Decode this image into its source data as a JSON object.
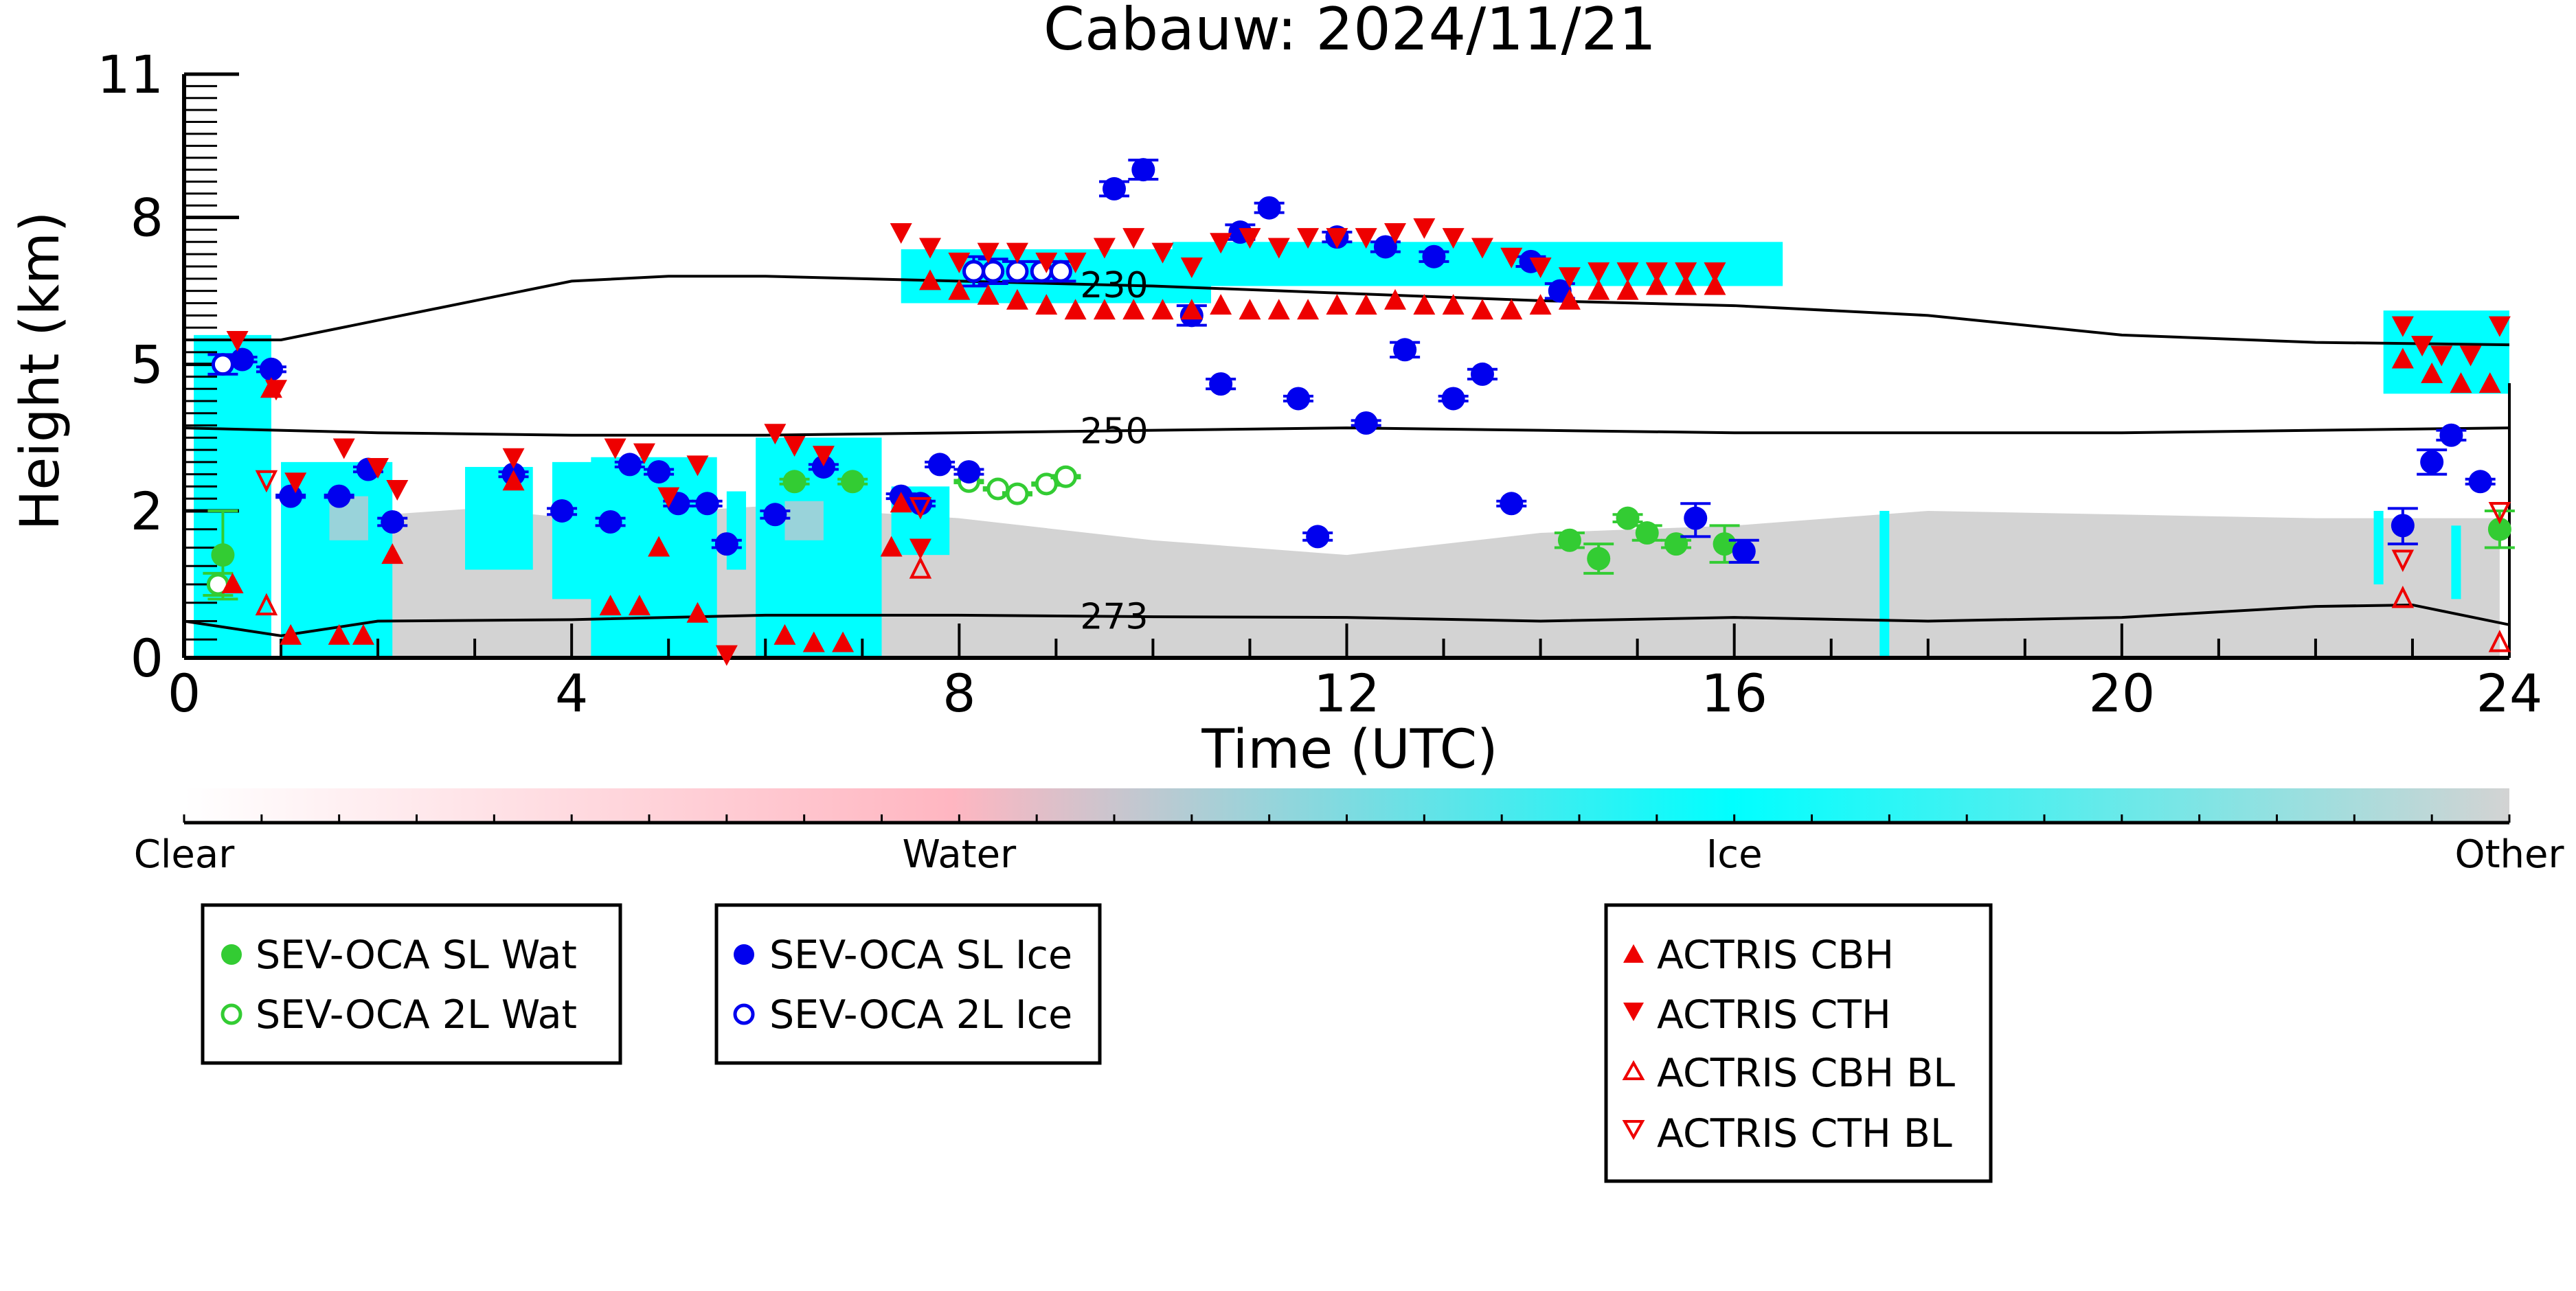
{
  "chart_data": {
    "type": "scatter",
    "title": "Cabauw: 2024/11/21",
    "xlabel": "Time (UTC)",
    "ylabel": "Height (km)",
    "xlim": [
      0,
      24
    ],
    "ylim": [
      0,
      11
    ],
    "xticks": [
      "0",
      "4",
      "8",
      "12",
      "16",
      "20",
      "24"
    ],
    "xtick_values": [
      0,
      4,
      8,
      12,
      16,
      20,
      24
    ],
    "yticks": [
      "0",
      "2",
      "5",
      "8",
      "11"
    ],
    "ytick_values": [
      0,
      2,
      5,
      8,
      11
    ],
    "y_scale": "nonlinear",
    "y_mapping": [
      [
        0,
        0
      ],
      [
        2,
        2.77
      ],
      [
        5,
        5.53
      ],
      [
        8,
        8.3
      ],
      [
        11,
        11
      ]
    ],
    "grid": false,
    "colorbar": {
      "labels": [
        "Clear",
        "Water",
        "Ice",
        "Other"
      ],
      "colors": [
        "#ffffff",
        "#ffb6c1",
        "#00ffff",
        "#d3d3d3"
      ]
    },
    "contours": [
      {
        "label": "230",
        "points": [
          [
            0,
            5.5
          ],
          [
            1,
            5.5
          ],
          [
            2,
            5.9
          ],
          [
            3,
            6.3
          ],
          [
            4,
            6.7
          ],
          [
            5,
            6.8
          ],
          [
            6,
            6.8
          ],
          [
            8,
            6.7
          ],
          [
            10,
            6.6
          ],
          [
            12,
            6.45
          ],
          [
            14,
            6.3
          ],
          [
            16,
            6.2
          ],
          [
            18,
            6.0
          ],
          [
            20,
            5.6
          ],
          [
            22,
            5.45
          ],
          [
            24,
            5.4
          ]
        ]
      },
      {
        "label": "250",
        "points": [
          [
            0,
            3.7
          ],
          [
            2,
            3.6
          ],
          [
            4,
            3.55
          ],
          [
            6,
            3.55
          ],
          [
            8,
            3.6
          ],
          [
            10,
            3.65
          ],
          [
            12,
            3.7
          ],
          [
            14,
            3.65
          ],
          [
            16,
            3.6
          ],
          [
            18,
            3.6
          ],
          [
            20,
            3.6
          ],
          [
            22,
            3.65
          ],
          [
            24,
            3.7
          ]
        ]
      },
      {
        "label": "273",
        "points": [
          [
            0,
            0.5
          ],
          [
            1,
            0.3
          ],
          [
            2,
            0.5
          ],
          [
            4,
            0.52
          ],
          [
            6,
            0.58
          ],
          [
            8,
            0.58
          ],
          [
            10,
            0.56
          ],
          [
            12,
            0.55
          ],
          [
            14,
            0.5
          ],
          [
            16,
            0.55
          ],
          [
            18,
            0.5
          ],
          [
            20,
            0.55
          ],
          [
            22,
            0.7
          ],
          [
            23,
            0.72
          ],
          [
            24,
            0.45
          ]
        ]
      }
    ],
    "series": [
      {
        "name": "SEV-OCA SL Wat",
        "marker": "filled-circle",
        "color": "#33cc33",
        "x": [
          0.4,
          6.3,
          6.9,
          14.3,
          14.6,
          14.9,
          15.1,
          15.4,
          15.9,
          23.9
        ],
        "y": [
          1.4,
          2.6,
          2.6,
          1.6,
          1.35,
          1.9,
          1.7,
          1.55,
          1.55,
          1.75
        ],
        "yerr": [
          1.2,
          0.1,
          0.1,
          0.2,
          0.4,
          0.1,
          0.2,
          0.1,
          0.5,
          0.5
        ]
      },
      {
        "name": "SEV-OCA 2L Wat",
        "marker": "open-circle",
        "color": "#33cc33",
        "x": [
          0.35,
          8.1,
          8.4,
          8.6,
          8.9,
          9.1
        ],
        "y": [
          1.0,
          2.6,
          2.45,
          2.35,
          2.55,
          2.7
        ],
        "yerr": [
          0.3,
          0.05,
          0.05,
          0.05,
          0.05,
          0.05
        ]
      },
      {
        "name": "SEV-OCA SL Ice",
        "marker": "filled-circle",
        "color": "#0000ee",
        "x": [
          0.6,
          0.9,
          1.1,
          1.6,
          1.9,
          2.15,
          3.4,
          3.9,
          4.4,
          4.6,
          4.9,
          5.1,
          5.4,
          5.6,
          6.1,
          6.6,
          7.4,
          7.6,
          7.8,
          8.1,
          9.6,
          9.9,
          10.4,
          10.7,
          10.9,
          11.2,
          11.5,
          11.7,
          11.9,
          12.2,
          12.4,
          12.6,
          12.9,
          13.1,
          13.4,
          13.7,
          13.9,
          14.2,
          15.6,
          16.1,
          22.9,
          23.2,
          23.4,
          23.7
        ],
        "y": [
          5.1,
          4.9,
          2.3,
          2.3,
          2.85,
          1.85,
          2.75,
          2.0,
          1.85,
          2.95,
          2.8,
          2.15,
          2.15,
          1.55,
          1.95,
          2.9,
          2.3,
          2.15,
          2.95,
          2.8,
          8.6,
          9.0,
          6.0,
          4.6,
          7.7,
          8.2,
          4.3,
          1.65,
          7.6,
          3.8,
          7.4,
          5.3,
          7.2,
          4.3,
          4.8,
          2.15,
          7.1,
          6.5,
          1.9,
          1.45,
          1.8,
          3.0,
          3.55,
          2.6
        ],
        "yerr": [
          0.1,
          0.1,
          0.05,
          0.05,
          0.1,
          0.1,
          0.1,
          0.1,
          0.1,
          0.1,
          0.1,
          0.1,
          0.1,
          0.1,
          0.1,
          0.1,
          0.1,
          0.1,
          0.1,
          0.1,
          0.3,
          0.4,
          0.4,
          0.2,
          0.3,
          0.2,
          0.1,
          0.1,
          0.2,
          0.1,
          0.2,
          0.3,
          0.2,
          0.1,
          0.2,
          0.1,
          0.2,
          0.3,
          0.5,
          0.3,
          0.5,
          0.5,
          0.2,
          0.1
        ]
      },
      {
        "name": "SEV-OCA 2L Ice",
        "marker": "open-circle",
        "color": "#0000ee",
        "x": [
          0.4,
          8.15,
          8.35,
          8.6,
          8.85,
          9.05
        ],
        "y": [
          5.0,
          6.9,
          6.9,
          6.9,
          6.9,
          6.9
        ],
        "yerr": [
          0.4,
          0.6,
          0.5,
          0.4,
          0.4,
          0.4
        ]
      },
      {
        "name": "ACTRIS CBH",
        "marker": "filled-triangle-up",
        "color": "#ee0000",
        "x": [
          0.5,
          0.9,
          1.1,
          1.6,
          1.85,
          2.15,
          3.4,
          4.4,
          4.7,
          4.9,
          5.3,
          6.2,
          6.5,
          6.8,
          7.3,
          7.4,
          7.7,
          8.0,
          8.3,
          8.6,
          8.9,
          9.2,
          9.5,
          9.8,
          10.1,
          10.4,
          10.7,
          11.0,
          11.3,
          11.6,
          11.9,
          12.2,
          12.5,
          12.8,
          13.1,
          13.4,
          13.7,
          14.0,
          14.3,
          14.6,
          14.9,
          15.2,
          15.5,
          15.8,
          22.9,
          23.2,
          23.5,
          23.8
        ],
        "y": [
          1.0,
          4.5,
          0.3,
          0.3,
          0.3,
          1.4,
          2.6,
          0.7,
          0.7,
          1.5,
          0.6,
          0.3,
          0.2,
          0.2,
          1.5,
          2.15,
          6.7,
          6.5,
          6.4,
          6.3,
          6.2,
          6.1,
          6.1,
          6.1,
          6.1,
          6.1,
          6.2,
          6.1,
          6.1,
          6.1,
          6.2,
          6.2,
          6.3,
          6.2,
          6.2,
          6.1,
          6.1,
          6.2,
          6.3,
          6.5,
          6.5,
          6.6,
          6.6,
          6.6,
          5.1,
          4.8,
          4.6,
          4.6
        ],
        "yerr": []
      },
      {
        "name": "ACTRIS CTH",
        "marker": "filled-triangle-down",
        "color": "#ee0000",
        "x": [
          0.55,
          0.95,
          1.15,
          1.65,
          2.0,
          2.2,
          3.4,
          4.45,
          4.75,
          5.0,
          5.3,
          5.6,
          6.1,
          6.3,
          6.6,
          7.6,
          7.4,
          7.7,
          8.0,
          8.3,
          8.6,
          8.9,
          9.2,
          9.5,
          9.8,
          10.1,
          10.4,
          10.7,
          11.0,
          11.3,
          11.6,
          11.9,
          12.2,
          12.5,
          12.8,
          13.1,
          13.4,
          13.7,
          14.0,
          14.3,
          14.6,
          14.9,
          15.2,
          15.5,
          15.8,
          22.9,
          23.1,
          23.3,
          23.6,
          23.9
        ],
        "y": [
          5.5,
          4.5,
          2.6,
          3.3,
          2.9,
          2.45,
          3.1,
          3.3,
          3.2,
          2.3,
          2.95,
          0.05,
          3.6,
          3.35,
          3.15,
          1.5,
          7.7,
          7.4,
          7.1,
          7.3,
          7.3,
          7.1,
          7.1,
          7.4,
          7.6,
          7.3,
          7.0,
          7.5,
          7.6,
          7.4,
          7.6,
          7.6,
          7.6,
          7.7,
          7.8,
          7.6,
          7.4,
          7.2,
          7.0,
          6.8,
          6.9,
          6.9,
          6.9,
          6.9,
          6.9,
          5.8,
          5.4,
          5.2,
          5.2,
          5.8
        ],
        "yerr": []
      },
      {
        "name": "ACTRIS CBH BL",
        "marker": "open-triangle-up",
        "color": "#ee0000",
        "x": [
          0.85,
          7.6,
          22.9,
          23.9
        ],
        "y": [
          0.7,
          1.2,
          0.8,
          0.2
        ],
        "yerr": []
      },
      {
        "name": "ACTRIS CTH BL",
        "marker": "open-triangle-down",
        "color": "#ee0000",
        "x": [
          0.85,
          7.6,
          22.9,
          23.9
        ],
        "y": [
          2.65,
          2.1,
          1.35,
          2.0
        ],
        "yerr": []
      }
    ]
  }
}
